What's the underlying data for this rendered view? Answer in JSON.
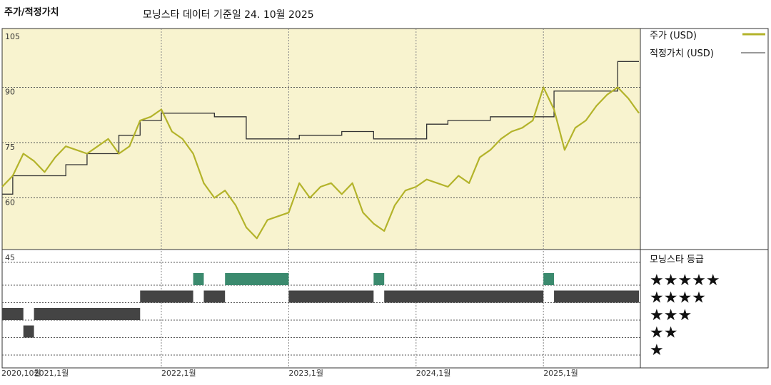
{
  "header": {
    "title": "주가/적정가치",
    "subtitle": "모닝스타 데이터 기준일 24. 10월 2025"
  },
  "legend": {
    "price_label": "주가 (USD)",
    "fair_label": "적정가치 (USD)",
    "rating_title": "모닝스타 등급"
  },
  "colors": {
    "price": "#b3b32a",
    "fair": "#333333",
    "panel_bg": "#f8f3cf",
    "rating_bar": "#444444",
    "rating_bar_5": "#3b8a6e"
  },
  "chart_data": {
    "type": "line",
    "y_ticks": [
      "105",
      "90",
      "75",
      "60",
      "45"
    ],
    "x_ticks": [
      "2020,10월",
      "2021,1월",
      "2022,1월",
      "2023,1월",
      "2024,1월",
      "2025,1월"
    ],
    "ylim": [
      45,
      105
    ],
    "xlim": [
      "2020-10",
      "2025-10"
    ],
    "series": [
      {
        "name": "주가 (USD)",
        "x": [
          "2020-10",
          "2020-11",
          "2020-12",
          "2021-01",
          "2021-02",
          "2021-03",
          "2021-04",
          "2021-05",
          "2021-06",
          "2021-07",
          "2021-08",
          "2021-09",
          "2021-10",
          "2021-11",
          "2021-12",
          "2022-01",
          "2022-02",
          "2022-03",
          "2022-04",
          "2022-05",
          "2022-06",
          "2022-07",
          "2022-08",
          "2022-09",
          "2022-10",
          "2022-11",
          "2022-12",
          "2023-01",
          "2023-02",
          "2023-03",
          "2023-04",
          "2023-05",
          "2023-06",
          "2023-07",
          "2023-08",
          "2023-09",
          "2023-10",
          "2023-11",
          "2023-12",
          "2024-01",
          "2024-02",
          "2024-03",
          "2024-04",
          "2024-05",
          "2024-06",
          "2024-07",
          "2024-08",
          "2024-09",
          "2024-10",
          "2024-11",
          "2024-12",
          "2025-01",
          "2025-02",
          "2025-03",
          "2025-04",
          "2025-05",
          "2025-06",
          "2025-07",
          "2025-08",
          "2025-09",
          "2025-10"
        ],
        "values": [
          63,
          66,
          72,
          70,
          67,
          71,
          74,
          73,
          72,
          74,
          76,
          72,
          74,
          81,
          82,
          84,
          78,
          76,
          72,
          64,
          60,
          62,
          58,
          52,
          49,
          54,
          55,
          56,
          64,
          60,
          63,
          64,
          61,
          64,
          56,
          53,
          51,
          58,
          62,
          63,
          65,
          64,
          63,
          66,
          64,
          71,
          73,
          76,
          78,
          79,
          81,
          90,
          84,
          73,
          79,
          81,
          85,
          88,
          90,
          87,
          83
        ]
      },
      {
        "name": "적정가치 (USD)",
        "x": [
          "2020-10",
          "2020-11",
          "2021-01",
          "2021-04",
          "2021-06",
          "2021-09",
          "2021-11",
          "2022-01",
          "2022-04",
          "2022-06",
          "2022-09",
          "2023-02",
          "2023-06",
          "2023-09",
          "2024-02",
          "2024-04",
          "2024-08",
          "2025-02",
          "2025-08",
          "2025-10"
        ],
        "values": [
          61,
          66,
          66,
          69,
          72,
          77,
          81,
          83,
          83,
          82,
          76,
          77,
          78,
          76,
          80,
          81,
          82,
          89,
          97,
          97
        ]
      }
    ],
    "rating": {
      "levels": [
        "★★★★★",
        "★★★★",
        "★★★",
        "★★",
        "★"
      ],
      "segments": [
        {
          "start": "2020-10",
          "end": "2020-12",
          "stars": 3
        },
        {
          "start": "2020-12",
          "end": "2021-01",
          "stars": 2
        },
        {
          "start": "2021-01",
          "end": "2021-11",
          "stars": 3
        },
        {
          "start": "2021-11",
          "end": "2022-04",
          "stars": 4
        },
        {
          "start": "2022-04",
          "end": "2022-05",
          "stars": 5
        },
        {
          "start": "2022-05",
          "end": "2022-07",
          "stars": 4
        },
        {
          "start": "2022-07",
          "end": "2023-01",
          "stars": 5
        },
        {
          "start": "2023-01",
          "end": "2023-09",
          "stars": 4
        },
        {
          "start": "2023-09",
          "end": "2023-10",
          "stars": 5
        },
        {
          "start": "2023-10",
          "end": "2025-01",
          "stars": 4
        },
        {
          "start": "2025-01",
          "end": "2025-02",
          "stars": 5
        },
        {
          "start": "2025-02",
          "end": "2025-10",
          "stars": 4
        }
      ]
    }
  }
}
